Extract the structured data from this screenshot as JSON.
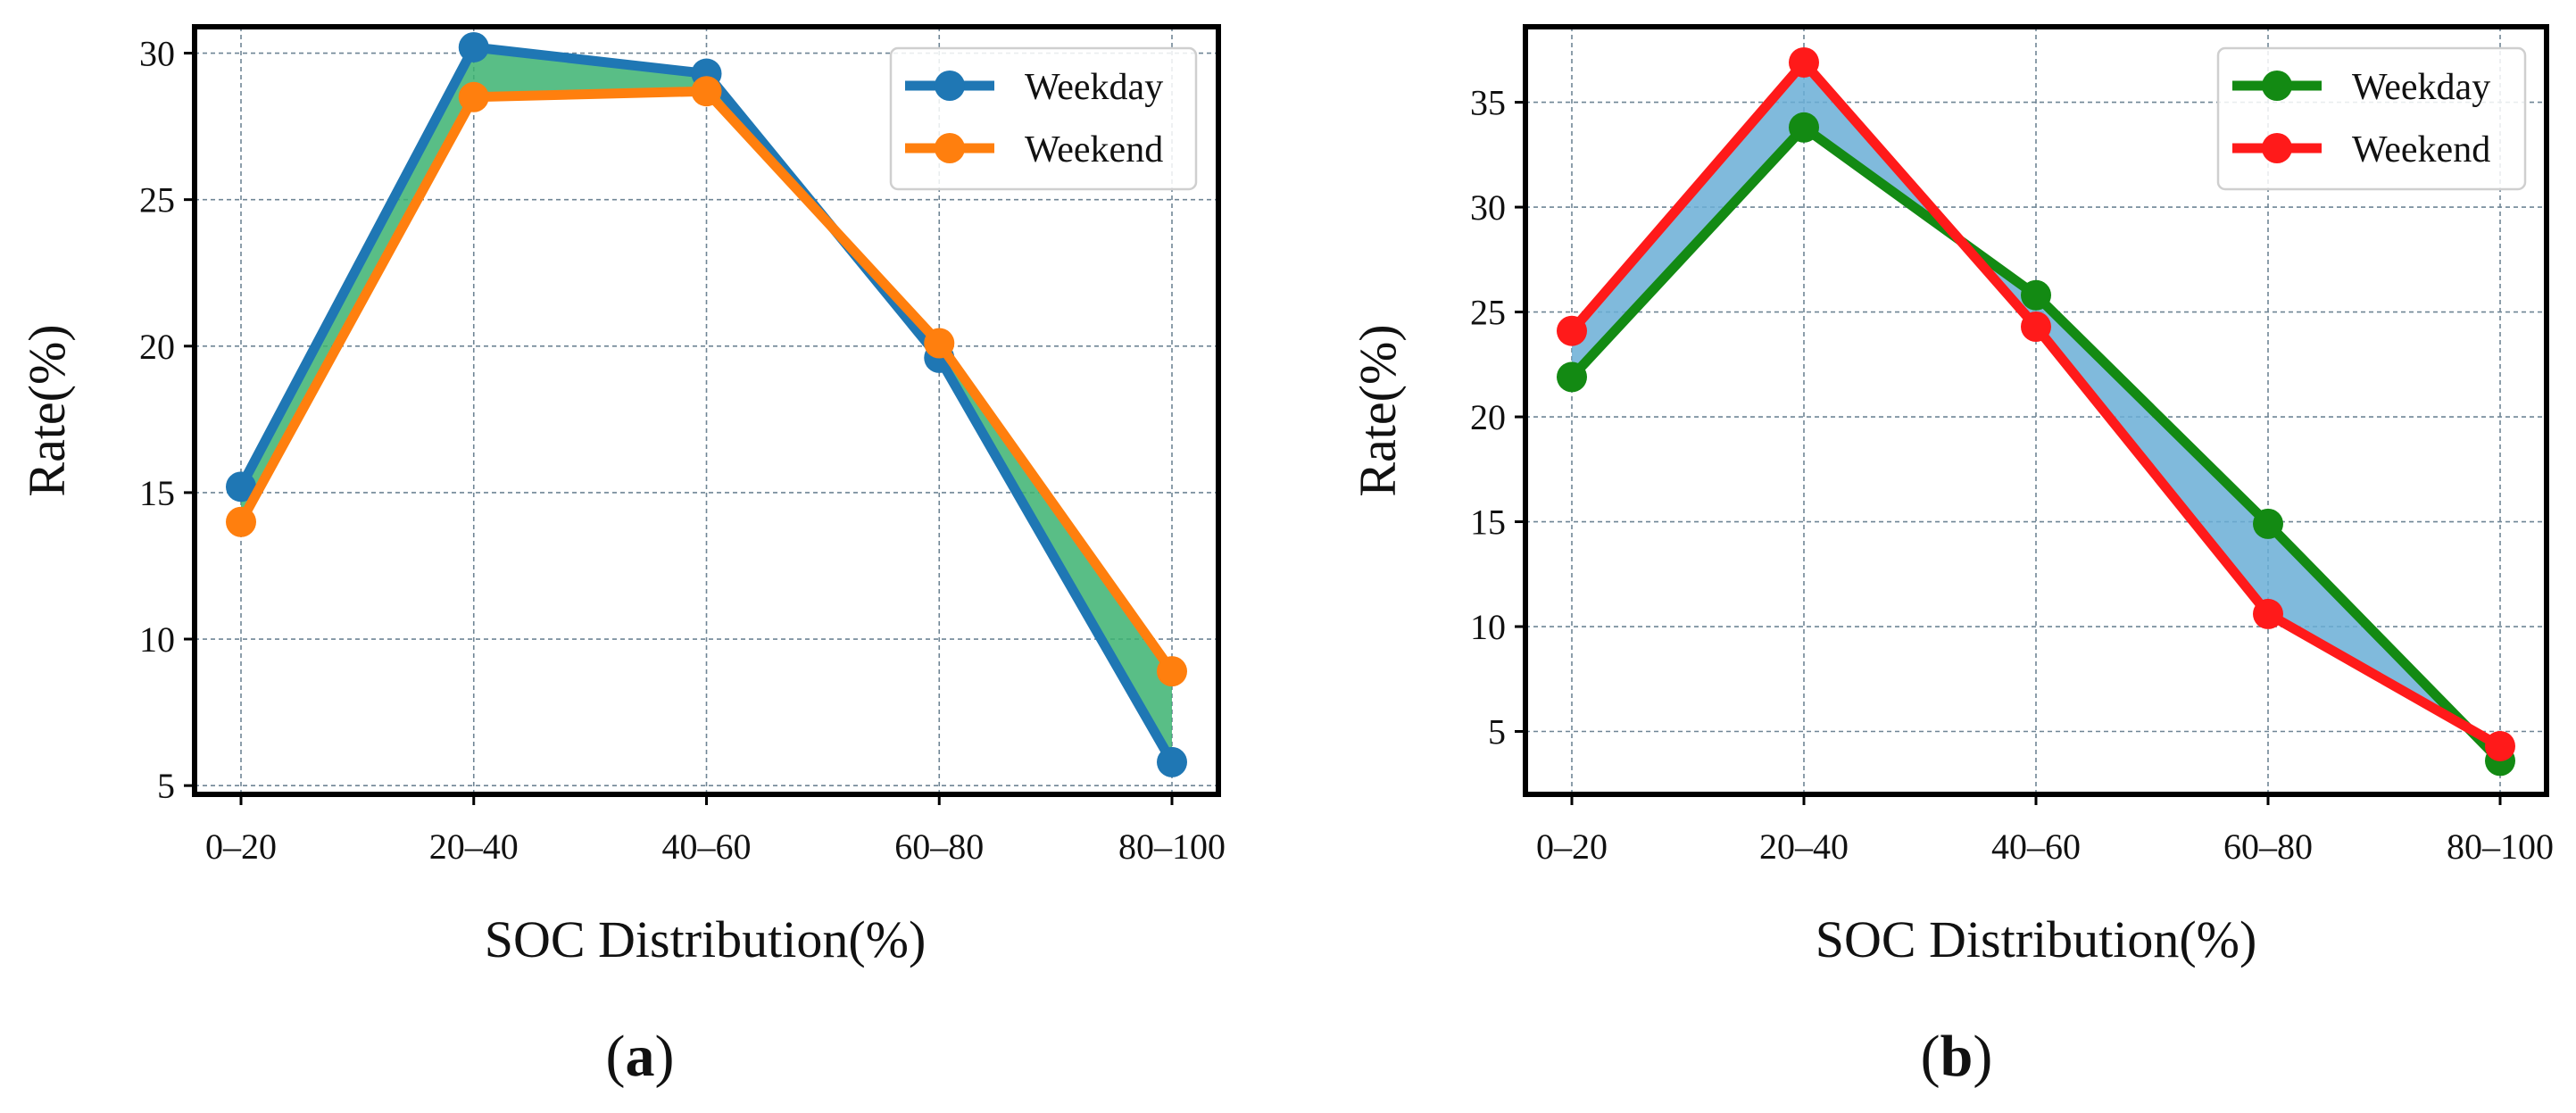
{
  "figure": {
    "panels": [
      {
        "label_open": "(",
        "label_letter": "a",
        "label_close": ")"
      },
      {
        "label_open": "(",
        "label_letter": "b",
        "label_close": ")"
      }
    ]
  },
  "chart_data": [
    {
      "type": "line",
      "categories": [
        "0–20",
        "20–40",
        "40–60",
        "60–80",
        "80–100"
      ],
      "series": [
        {
          "name": "Weekday",
          "values": [
            15.2,
            30.2,
            29.3,
            19.6,
            5.8
          ],
          "color": "#1f77b4"
        },
        {
          "name": "Weekend",
          "values": [
            14.0,
            28.5,
            28.7,
            20.1,
            8.9
          ],
          "color": "#ff7f0e"
        }
      ],
      "fill_between_color": "#3cb371",
      "xlabel": "SOC Distribution(%)",
      "ylabel": "Rate(%)",
      "ylim": [
        4.7,
        30.9
      ],
      "yticks": [
        5,
        10,
        15,
        20,
        25,
        30
      ],
      "grid": true,
      "legend_position": "top-right"
    },
    {
      "type": "line",
      "categories": [
        "0–20",
        "20–40",
        "40–60",
        "60–80",
        "80–100"
      ],
      "series": [
        {
          "name": "Weekday",
          "values": [
            21.9,
            33.8,
            25.8,
            14.9,
            3.6
          ],
          "color": "#138a13"
        },
        {
          "name": "Weekend",
          "values": [
            24.1,
            36.9,
            24.3,
            10.6,
            4.3
          ],
          "color": "#ff1a1a"
        }
      ],
      "fill_between_color": "#6aaed6",
      "xlabel": "SOC Distribution(%)",
      "ylabel": "Rate(%)",
      "ylim": [
        2.0,
        38.6
      ],
      "yticks": [
        5,
        10,
        15,
        20,
        25,
        30,
        35
      ],
      "grid": true,
      "legend_position": "top-right"
    }
  ]
}
